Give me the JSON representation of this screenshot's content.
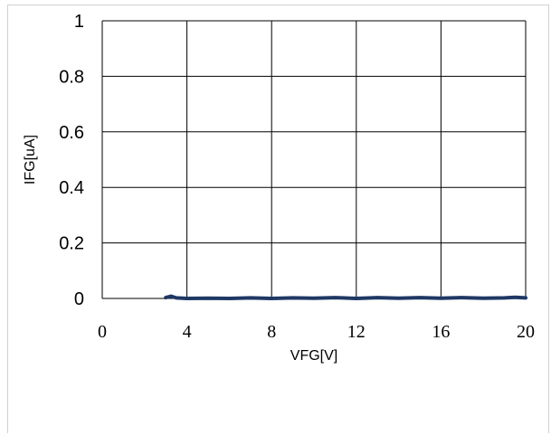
{
  "chart_data": {
    "type": "line",
    "xlabel": "VFG[V]",
    "ylabel": "IFG[uA]",
    "xlim": [
      0,
      20
    ],
    "ylim": [
      0,
      1
    ],
    "xticks": [
      0,
      4,
      8,
      12,
      16,
      20
    ],
    "yticks": [
      0,
      0.2,
      0.4,
      0.6,
      0.8,
      1
    ],
    "ytick_labels": [
      "0",
      "0.2",
      "0.4",
      "0.6",
      "0.8",
      "1"
    ],
    "xtick_labels": [
      "0",
      "4",
      "8",
      "12",
      "16",
      "20"
    ],
    "grid": true,
    "series": [
      {
        "color": "#1f3864",
        "x": [
          3.0,
          3.25,
          3.5,
          4,
          5,
          6,
          7,
          8,
          9,
          10,
          11,
          12,
          13,
          14,
          15,
          16,
          17,
          18,
          19,
          19.5,
          20
        ],
        "y": [
          0.003,
          0.008,
          0.002,
          0.0,
          0.001,
          0.0,
          0.002,
          0.0,
          0.002,
          0.001,
          0.003,
          0.0,
          0.003,
          0.001,
          0.003,
          0.001,
          0.003,
          0.001,
          0.002,
          0.004,
          0.002
        ]
      }
    ]
  }
}
